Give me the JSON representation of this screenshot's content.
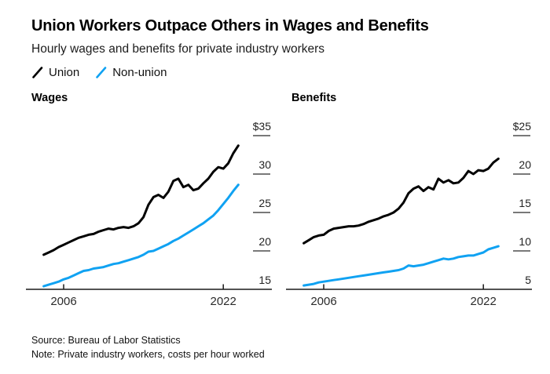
{
  "header": {
    "title": "Union Workers Outpace Others in Wages and Benefits",
    "subtitle": "Hourly wages and benefits for private industry workers"
  },
  "legend": {
    "position": "top",
    "items": [
      {
        "label": "Union",
        "color": "#000000"
      },
      {
        "label": "Non-union",
        "color": "#10a2f2"
      }
    ]
  },
  "footer": {
    "source": "Source: Bureau of Labor Statistics",
    "note": "Note: Private industry workers, costs per hour worked"
  },
  "chart_data": [
    {
      "type": "line",
      "title": "Wages",
      "grid": false,
      "x_unit": "year",
      "y_unit": "dollars per hour",
      "x": [
        2004,
        2004.5,
        2005,
        2005.5,
        2006,
        2006.5,
        2007,
        2007.5,
        2008,
        2008.5,
        2009,
        2009.5,
        2010,
        2010.5,
        2011,
        2011.5,
        2012,
        2012.5,
        2013,
        2013.5,
        2014,
        2014.5,
        2015,
        2015.5,
        2016,
        2016.5,
        2017,
        2017.5,
        2018,
        2018.5,
        2019,
        2019.5,
        2020,
        2020.5,
        2021,
        2021.5,
        2022,
        2022.5,
        2023,
        2023.5
      ],
      "xticks": [
        {
          "t": 2006,
          "label": "2006"
        },
        {
          "t": 2022,
          "label": "2022"
        }
      ],
      "yticks": [
        35,
        30,
        25,
        20,
        15
      ],
      "ytick_labels": [
        "$35",
        "30",
        "25",
        "20",
        "15"
      ],
      "ylim": [
        14.5,
        35.5
      ],
      "series": [
        {
          "name": "Union",
          "color": "#000000",
          "values": [
            19.5,
            19.8,
            20.1,
            20.5,
            20.8,
            21.1,
            21.4,
            21.7,
            21.9,
            22.1,
            22.2,
            22.5,
            22.7,
            22.9,
            22.8,
            23.0,
            23.1,
            23.0,
            23.2,
            23.6,
            24.4,
            26.0,
            27.0,
            27.3,
            26.9,
            27.7,
            29.1,
            29.4,
            28.3,
            28.6,
            27.9,
            28.1,
            28.8,
            29.4,
            30.3,
            30.9,
            30.7,
            31.4,
            32.7,
            33.7
          ]
        },
        {
          "name": "Non-union",
          "color": "#10a2f2",
          "values": [
            15.4,
            15.6,
            15.8,
            16.0,
            16.3,
            16.5,
            16.8,
            17.1,
            17.4,
            17.5,
            17.7,
            17.8,
            17.9,
            18.1,
            18.3,
            18.4,
            18.6,
            18.8,
            19.0,
            19.2,
            19.5,
            19.9,
            20.0,
            20.3,
            20.6,
            20.9,
            21.3,
            21.6,
            22.0,
            22.4,
            22.8,
            23.2,
            23.6,
            24.1,
            24.6,
            25.3,
            26.1,
            26.9,
            27.8,
            28.6
          ]
        }
      ]
    },
    {
      "type": "line",
      "title": "Benefits",
      "grid": false,
      "x_unit": "year",
      "y_unit": "dollars per hour",
      "x": [
        2004,
        2004.5,
        2005,
        2005.5,
        2006,
        2006.5,
        2007,
        2007.5,
        2008,
        2008.5,
        2009,
        2009.5,
        2010,
        2010.5,
        2011,
        2011.5,
        2012,
        2012.5,
        2013,
        2013.5,
        2014,
        2014.5,
        2015,
        2015.5,
        2016,
        2016.5,
        2017,
        2017.5,
        2018,
        2018.5,
        2019,
        2019.5,
        2020,
        2020.5,
        2021,
        2021.5,
        2022,
        2022.5,
        2023,
        2023.5
      ],
      "xticks": [
        {
          "t": 2006,
          "label": "2006"
        },
        {
          "t": 2022,
          "label": "2022"
        }
      ],
      "yticks": [
        25,
        20,
        15,
        10,
        5
      ],
      "ytick_labels": [
        "$25",
        "20",
        "15",
        "10",
        "5"
      ],
      "ylim": [
        4.5,
        25.5
      ],
      "series": [
        {
          "name": "Union",
          "color": "#000000",
          "values": [
            11.0,
            11.4,
            11.8,
            12.0,
            12.1,
            12.6,
            12.9,
            13.0,
            13.1,
            13.2,
            13.2,
            13.3,
            13.5,
            13.8,
            14.0,
            14.2,
            14.5,
            14.7,
            15.0,
            15.5,
            16.3,
            17.5,
            18.1,
            18.4,
            17.8,
            18.3,
            18.0,
            19.4,
            18.9,
            19.2,
            18.8,
            18.9,
            19.5,
            20.4,
            20.0,
            20.5,
            20.4,
            20.7,
            21.5,
            22.0
          ]
        },
        {
          "name": "Non-union",
          "color": "#10a2f2",
          "values": [
            5.5,
            5.6,
            5.7,
            5.9,
            6.0,
            6.1,
            6.2,
            6.3,
            6.4,
            6.5,
            6.6,
            6.7,
            6.8,
            6.9,
            7.0,
            7.1,
            7.2,
            7.3,
            7.4,
            7.5,
            7.7,
            8.1,
            8.0,
            8.1,
            8.2,
            8.4,
            8.6,
            8.8,
            9.0,
            8.9,
            9.0,
            9.2,
            9.3,
            9.4,
            9.4,
            9.6,
            9.8,
            10.2,
            10.4,
            10.6
          ]
        }
      ]
    }
  ]
}
